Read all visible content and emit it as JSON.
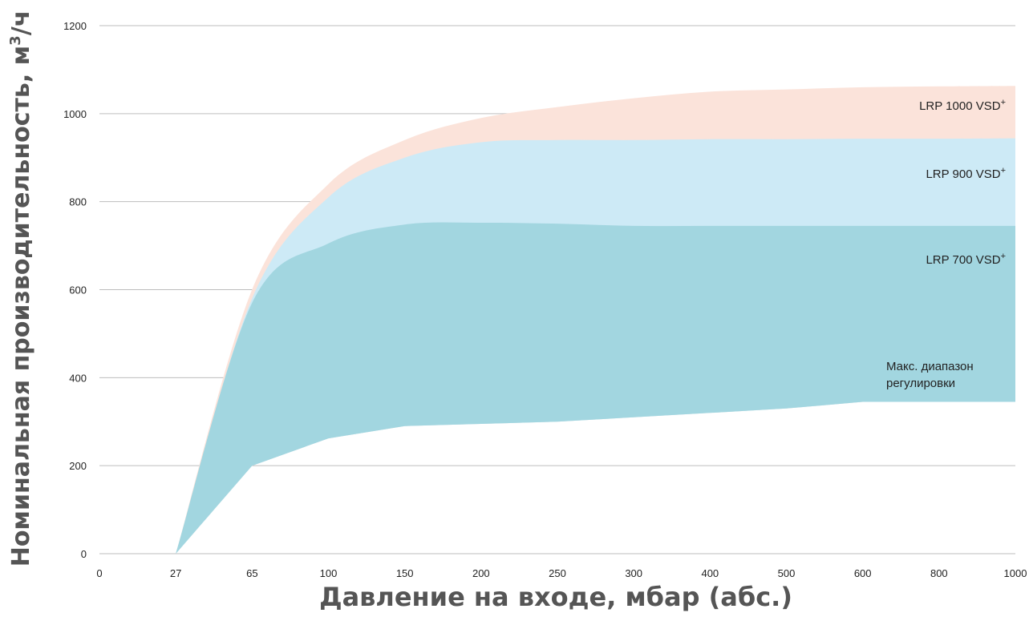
{
  "chart_data": {
    "type": "area",
    "xlabel": "Давление на входе, мбар (абс.)",
    "ylabel_main": "Номинальная производительность, м",
    "ylabel_sup": "3",
    "ylabel_tail": "/ч",
    "categories": [
      "0",
      "27",
      "65",
      "100",
      "150",
      "200",
      "250",
      "300",
      "400",
      "500",
      "600",
      "800",
      "1000"
    ],
    "ylim": [
      0,
      1200
    ],
    "y_ticks": [
      0,
      200,
      400,
      600,
      800,
      1000,
      1200
    ],
    "grid": true,
    "colors": {
      "LRP 1000 VSD+": "#fbe3da",
      "LRP 900 VSD+": "#cdeaf6",
      "LRP 700 VSD+": "#a2d6e0",
      "grid": "#bdbdbd"
    },
    "series": [
      {
        "name": "LRP 1000 VSD+",
        "label_main": "LRP 1000 VSD",
        "label_sup": "+",
        "x": [
          "27",
          "65",
          "100",
          "150",
          "200",
          "250",
          "300",
          "400",
          "500",
          "600",
          "800",
          "1000"
        ],
        "values": [
          0,
          600,
          840,
          940,
          990,
          1015,
          1035,
          1050,
          1055,
          1060,
          1062,
          1063
        ]
      },
      {
        "name": "LRP 900 VSD+",
        "label_main": "LRP 900 VSD",
        "label_sup": "+",
        "x": [
          "27",
          "65",
          "100",
          "150",
          "200",
          "250",
          "300",
          "400",
          "500",
          "600",
          "800",
          "1000"
        ],
        "values": [
          0,
          580,
          810,
          900,
          935,
          940,
          940,
          942,
          942,
          943,
          943,
          944
        ]
      },
      {
        "name": "LRP 700 VSD+",
        "label_main": "LRP 700 VSD",
        "label_sup": "+",
        "x": [
          "27",
          "65",
          "100",
          "150",
          "200",
          "250",
          "300",
          "400",
          "500",
          "600",
          "800",
          "1000"
        ],
        "values": [
          0,
          570,
          705,
          748,
          752,
          750,
          745,
          745,
          745,
          745,
          745,
          745
        ]
      },
      {
        "name": "Макс. диапазон регулировки",
        "label_lines": [
          "Макс. диапазон",
          "регулировки"
        ],
        "x": [
          "27",
          "65",
          "100",
          "150",
          "200",
          "250",
          "300",
          "400",
          "500",
          "600",
          "800",
          "1000"
        ],
        "values": [
          0,
          200,
          262,
          290,
          295,
          300,
          310,
          320,
          330,
          345,
          345,
          345
        ]
      }
    ]
  }
}
